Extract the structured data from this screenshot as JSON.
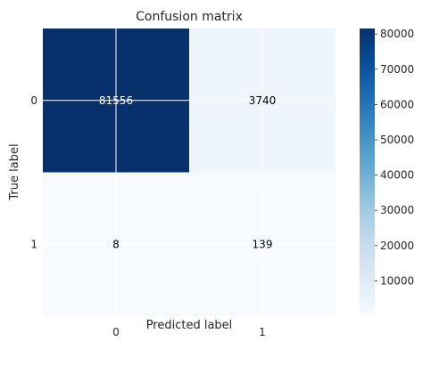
{
  "chart_data": {
    "type": "heatmap",
    "title": "Confusion matrix",
    "xlabel": "Predicted label",
    "ylabel": "True label",
    "x_categories": [
      "0",
      "1"
    ],
    "y_categories": [
      "0",
      "1"
    ],
    "values": [
      [
        81556,
        3740
      ],
      [
        8,
        139
      ]
    ],
    "cell_labels": [
      [
        "81556",
        "3740"
      ],
      [
        "8",
        "139"
      ]
    ],
    "colormap": "Blues",
    "colorbar": {
      "range": [
        8,
        81556
      ],
      "ticks": [
        10000,
        20000,
        30000,
        40000,
        50000,
        60000,
        70000,
        80000
      ],
      "tick_labels": [
        "10000",
        "20000",
        "30000",
        "40000",
        "50000",
        "60000",
        "70000",
        "80000"
      ]
    },
    "grid": true
  }
}
